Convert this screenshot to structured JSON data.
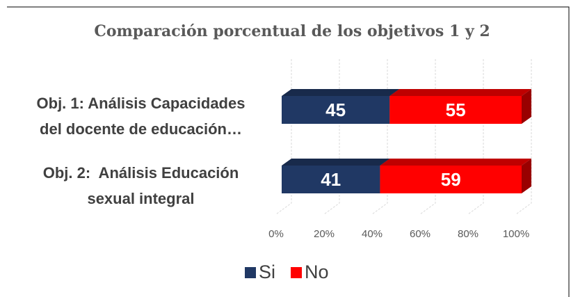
{
  "chart_data": {
    "type": "bar3d_stacked_horizontal",
    "title": "Comparación porcentual de los objetivos 1 y 2",
    "categories": [
      "Obj. 1: Análisis Capacidades\ndel docente de educación…",
      "Obj. 2:  Análisis Educación\nsexual integral"
    ],
    "series": [
      {
        "name": "Si",
        "color": "#203864",
        "values": [
          45,
          41
        ]
      },
      {
        "name": "No",
        "color": "#ff0000",
        "values": [
          55,
          59
        ]
      }
    ],
    "xlim": [
      0,
      100
    ],
    "xticks": [
      {
        "value": 0,
        "label": "0%"
      },
      {
        "value": 20,
        "label": "20%"
      },
      {
        "value": 40,
        "label": "40%"
      },
      {
        "value": 60,
        "label": "60%"
      },
      {
        "value": 80,
        "label": "80%"
      },
      {
        "value": 100,
        "label": "100%"
      }
    ],
    "grid": true,
    "legend": "bottom"
  }
}
